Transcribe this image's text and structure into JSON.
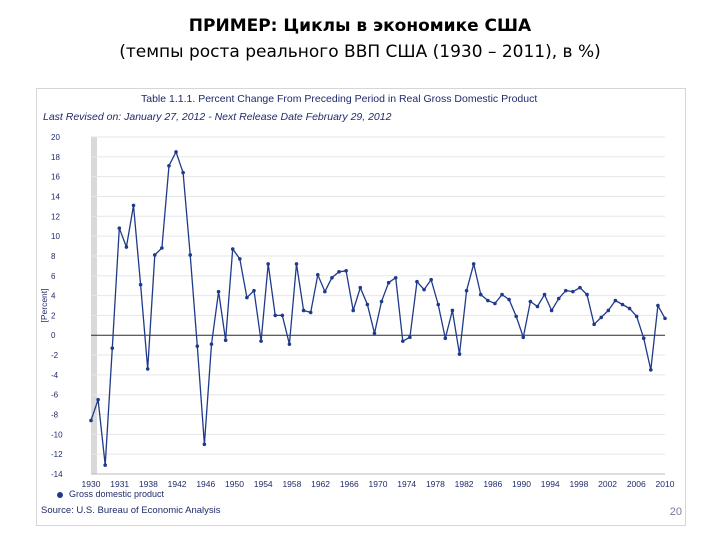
{
  "slide": {
    "title_line1": "ПРИМЕР: Циклы в экономике США",
    "title_line2": "(темпы роста реального ВВП США (1930 – 2011), в %)",
    "page_number": "20"
  },
  "colors": {
    "line": "#1f3a8a",
    "marker": "#1f3a8a",
    "zero_line": "#2a2a2a",
    "grid": "#e6e6e6",
    "highlight_band": "#d9d9d9",
    "text": "#1f2a6b"
  },
  "chart_data": {
    "type": "line",
    "title": "Table 1.1.1. Percent Change From Preceding Period in Real Gross Domestic Product",
    "subtitle": "Last Revised on: January 27, 2012 - Next Release Date February 29, 2012",
    "ylabel": "[Percent]",
    "xlabel": "",
    "source": "Source: U.S. Bureau of Economic Analysis",
    "legend": [
      "Gross domestic product"
    ],
    "ylim": [
      -14,
      20
    ],
    "xlim": [
      1930,
      2011
    ],
    "grid": "horizontal",
    "legend_position": "bottom-left",
    "y_ticks": [
      "20",
      "18",
      "16",
      "14",
      "12",
      "10",
      "8",
      "6",
      "4",
      "2",
      "0",
      "-2",
      "-4",
      "-6",
      "-8",
      "-10",
      "-12",
      "-14"
    ],
    "x_ticks": [
      "1930",
      "1931",
      "1938",
      "1942",
      "1946",
      "1950",
      "1954",
      "1958",
      "1962",
      "1966",
      "1970",
      "1974",
      "1978",
      "1982",
      "1986",
      "1990",
      "1994",
      "1998",
      "2002",
      "2006",
      "2010"
    ],
    "series": [
      {
        "name": "Gross domestic product",
        "x": [
          1930,
          1931,
          1932,
          1933,
          1934,
          1935,
          1936,
          1937,
          1938,
          1939,
          1940,
          1941,
          1942,
          1943,
          1944,
          1945,
          1946,
          1947,
          1948,
          1949,
          1950,
          1951,
          1952,
          1953,
          1954,
          1955,
          1956,
          1957,
          1958,
          1959,
          1960,
          1961,
          1962,
          1963,
          1964,
          1965,
          1966,
          1967,
          1968,
          1969,
          1970,
          1971,
          1972,
          1973,
          1974,
          1975,
          1976,
          1977,
          1978,
          1979,
          1980,
          1981,
          1982,
          1983,
          1984,
          1985,
          1986,
          1987,
          1988,
          1989,
          1990,
          1991,
          1992,
          1993,
          1994,
          1995,
          1996,
          1997,
          1998,
          1999,
          2000,
          2001,
          2002,
          2003,
          2004,
          2005,
          2006,
          2007,
          2008,
          2009,
          2010,
          2011
        ],
        "values": [
          -8.6,
          -6.5,
          -13.1,
          -1.3,
          10.8,
          8.9,
          13.1,
          5.1,
          -3.4,
          8.1,
          8.8,
          17.1,
          18.5,
          16.4,
          8.1,
          -1.1,
          -11.0,
          -0.9,
          4.4,
          -0.5,
          8.7,
          7.7,
          3.8,
          4.5,
          -0.6,
          7.2,
          2.0,
          2.0,
          -0.9,
          7.2,
          2.5,
          2.3,
          6.1,
          4.4,
          5.8,
          6.4,
          6.5,
          2.5,
          4.8,
          3.1,
          0.2,
          3.4,
          5.3,
          5.8,
          -0.6,
          -0.2,
          5.4,
          4.6,
          5.6,
          3.1,
          -0.3,
          2.5,
          -1.9,
          4.5,
          7.2,
          4.1,
          3.5,
          3.2,
          4.1,
          3.6,
          1.9,
          -0.2,
          3.4,
          2.9,
          4.1,
          2.5,
          3.7,
          4.5,
          4.4,
          4.8,
          4.1,
          1.1,
          1.8,
          2.5,
          3.5,
          3.1,
          2.7,
          1.9,
          -0.3,
          -3.5,
          3.0,
          1.7
        ]
      }
    ]
  }
}
